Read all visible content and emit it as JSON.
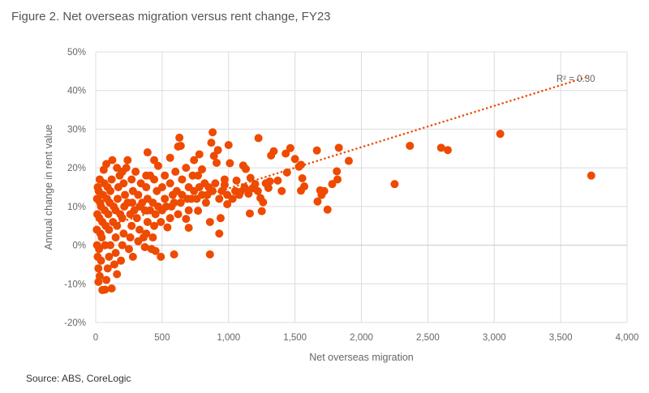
{
  "title": "Figure 2. Net overseas migration versus rent change, FY23",
  "source": "Source: ABS, CoreLogic",
  "chart_data": {
    "type": "scatter",
    "title": "Figure 2. Net overseas migration versus rent change, FY23",
    "xlabel": "Net overseas migration",
    "ylabel": "Annual change in rent value",
    "xlim": [
      0,
      4000
    ],
    "ylim": [
      -20,
      50
    ],
    "x_ticks": [
      "0",
      "500",
      "1,000",
      "1,500",
      "2,000",
      "2,500",
      "3,000",
      "3,500",
      "4,000"
    ],
    "x_tick_values": [
      0,
      500,
      1000,
      1500,
      2000,
      2500,
      3000,
      3500,
      4000
    ],
    "y_ticks": [
      "-20%",
      "-10%",
      "0%",
      "10%",
      "20%",
      "30%",
      "40%",
      "50%"
    ],
    "y_tick_values": [
      -20,
      -10,
      0,
      10,
      20,
      30,
      40,
      50
    ],
    "grid": true,
    "marker_color": "#EE4A00",
    "trendline": {
      "type": "linear",
      "style": "dotted",
      "color": "#EE4A00",
      "label": "R² = 0.30",
      "from": [
        0,
        4.0
      ],
      "to": [
        3700,
        43.5
      ]
    },
    "points": [
      [
        3730,
        18
      ],
      [
        3045,
        28.8
      ],
      [
        2650,
        24.6
      ],
      [
        2600,
        25.2
      ],
      [
        2365,
        25.7
      ],
      [
        2250,
        15.8
      ],
      [
        1905,
        21.8
      ],
      [
        1830,
        25.2
      ],
      [
        1815,
        19.1
      ],
      [
        1820,
        17
      ],
      [
        1780,
        15.8
      ],
      [
        1745,
        9.2
      ],
      [
        1720,
        14
      ],
      [
        1700,
        13
      ],
      [
        1690,
        14.2
      ],
      [
        1670,
        11.3
      ],
      [
        1665,
        24.5
      ],
      [
        1570,
        15.2
      ],
      [
        1555,
        17.3
      ],
      [
        1545,
        14.1
      ],
      [
        1545,
        20.8
      ],
      [
        1530,
        20.3
      ],
      [
        1500,
        22.3
      ],
      [
        1465,
        25.1
      ],
      [
        1440,
        18.8
      ],
      [
        1430,
        23.7
      ],
      [
        1400,
        14
      ],
      [
        1370,
        16.7
      ],
      [
        1340,
        24.3
      ],
      [
        1320,
        23.2
      ],
      [
        1310,
        16.5
      ],
      [
        1300,
        14.8
      ],
      [
        1260,
        11.1
      ],
      [
        1250,
        8.8
      ],
      [
        1240,
        12.2
      ],
      [
        1225,
        27.7
      ],
      [
        1200,
        15.8
      ],
      [
        1180,
        14.7
      ],
      [
        1165,
        17.4
      ],
      [
        1160,
        8.2
      ],
      [
        1150,
        13.3
      ],
      [
        1130,
        19.7
      ],
      [
        1110,
        20.6
      ],
      [
        1090,
        13.8
      ],
      [
        1060,
        16.7
      ],
      [
        1030,
        12
      ],
      [
        1000,
        25.9
      ],
      [
        1010,
        21.2
      ],
      [
        990,
        10.6
      ],
      [
        970,
        15.6
      ],
      [
        940,
        7
      ],
      [
        930,
        3
      ],
      [
        920,
        24.6
      ],
      [
        910,
        21.3
      ],
      [
        890,
        23.1
      ],
      [
        880,
        29.2
      ],
      [
        870,
        26.5
      ],
      [
        860,
        -2.4
      ],
      [
        860,
        6
      ],
      [
        850,
        15
      ],
      [
        830,
        11
      ],
      [
        800,
        19.6
      ],
      [
        780,
        23.5
      ],
      [
        770,
        8.9
      ],
      [
        740,
        22
      ],
      [
        700,
        4.5
      ],
      [
        680,
        6.8
      ],
      [
        640,
        25.7
      ],
      [
        630,
        27.8
      ],
      [
        620,
        25.5
      ],
      [
        600,
        19
      ],
      [
        590,
        -2.4
      ],
      [
        560,
        22.6
      ],
      [
        540,
        4.6
      ],
      [
        490,
        -3
      ],
      [
        470,
        20.5
      ],
      [
        450,
        -1.5
      ],
      [
        440,
        22
      ],
      [
        420,
        -1
      ],
      [
        390,
        24
      ],
      [
        380,
        18
      ],
      [
        370,
        -0.5
      ],
      [
        360,
        2
      ],
      [
        280,
        -3
      ],
      [
        230,
        20
      ],
      [
        240,
        22
      ],
      [
        160,
        -7.5
      ],
      [
        125,
        22
      ],
      [
        120,
        -11.2
      ],
      [
        70,
        -11.5
      ],
      [
        50,
        -11.6
      ],
      [
        20,
        -9.5
      ],
      [
        80,
        21
      ],
      [
        60,
        19.5
      ],
      [
        30,
        17
      ],
      [
        15,
        15
      ],
      [
        10,
        12
      ],
      [
        12,
        8
      ],
      [
        8,
        4
      ],
      [
        10,
        0
      ],
      [
        15,
        -3
      ],
      [
        20,
        -6
      ],
      [
        30,
        -8
      ],
      [
        40,
        -4
      ],
      [
        45,
        2
      ],
      [
        50,
        6
      ],
      [
        40,
        10
      ],
      [
        55,
        13
      ],
      [
        65,
        16
      ],
      [
        80,
        -9
      ],
      [
        90,
        -6
      ],
      [
        100,
        -3
      ],
      [
        110,
        0
      ],
      [
        100,
        4
      ],
      [
        95,
        8
      ],
      [
        105,
        11
      ],
      [
        110,
        14
      ],
      [
        120,
        17
      ],
      [
        140,
        -5
      ],
      [
        150,
        -2
      ],
      [
        150,
        2
      ],
      [
        160,
        5
      ],
      [
        150,
        9
      ],
      [
        165,
        12
      ],
      [
        170,
        15
      ],
      [
        180,
        18
      ],
      [
        190,
        -4
      ],
      [
        200,
        0
      ],
      [
        210,
        3
      ],
      [
        200,
        7
      ],
      [
        215,
        10
      ],
      [
        220,
        13
      ],
      [
        210,
        16
      ],
      [
        250,
        -1
      ],
      [
        260,
        2
      ],
      [
        270,
        5
      ],
      [
        260,
        8
      ],
      [
        275,
        11
      ],
      [
        280,
        14
      ],
      [
        270,
        17
      ],
      [
        300,
        19
      ],
      [
        320,
        1
      ],
      [
        330,
        4
      ],
      [
        310,
        7
      ],
      [
        330,
        10
      ],
      [
        320,
        13
      ],
      [
        340,
        16
      ],
      [
        380,
        3
      ],
      [
        390,
        6
      ],
      [
        370,
        9
      ],
      [
        390,
        12
      ],
      [
        380,
        15
      ],
      [
        410,
        18
      ],
      [
        430,
        2
      ],
      [
        440,
        5
      ],
      [
        450,
        8
      ],
      [
        430,
        11
      ],
      [
        460,
        14
      ],
      [
        440,
        17
      ],
      [
        490,
        6
      ],
      [
        500,
        9
      ],
      [
        520,
        12
      ],
      [
        500,
        15
      ],
      [
        520,
        18
      ],
      [
        560,
        7
      ],
      [
        570,
        10
      ],
      [
        580,
        13
      ],
      [
        560,
        16
      ],
      [
        620,
        8
      ],
      [
        640,
        11
      ],
      [
        610,
        14
      ],
      [
        650,
        17
      ],
      [
        680,
        20
      ],
      [
        700,
        9
      ],
      [
        720,
        12
      ],
      [
        700,
        15
      ],
      [
        730,
        18
      ],
      [
        760,
        12
      ],
      [
        780,
        15
      ],
      [
        770,
        18
      ],
      [
        800,
        13
      ],
      [
        820,
        16
      ],
      [
        840,
        13
      ],
      [
        880,
        14
      ],
      [
        900,
        16
      ],
      [
        930,
        12
      ],
      [
        950,
        14
      ],
      [
        970,
        17
      ],
      [
        990,
        13
      ],
      [
        1050,
        14
      ],
      [
        1080,
        13
      ],
      [
        1120,
        15
      ],
      [
        1150,
        14
      ],
      [
        1220,
        14
      ],
      [
        1280,
        16
      ],
      [
        25,
        -1
      ],
      [
        35,
        3
      ],
      [
        28,
        7
      ],
      [
        33,
        11
      ],
      [
        22,
        14
      ],
      [
        70,
        0
      ],
      [
        75,
        5
      ],
      [
        68,
        9
      ],
      [
        85,
        12
      ],
      [
        90,
        15
      ],
      [
        130,
        6
      ],
      [
        135,
        10
      ],
      [
        185,
        8
      ],
      [
        240,
        11
      ],
      [
        290,
        9
      ],
      [
        350,
        11
      ],
      [
        410,
        9
      ],
      [
        470,
        10
      ],
      [
        530,
        10
      ],
      [
        590,
        11
      ],
      [
        650,
        13
      ],
      [
        690,
        12
      ],
      [
        740,
        14
      ],
      [
        160,
        20
      ],
      [
        200,
        19
      ]
    ]
  }
}
